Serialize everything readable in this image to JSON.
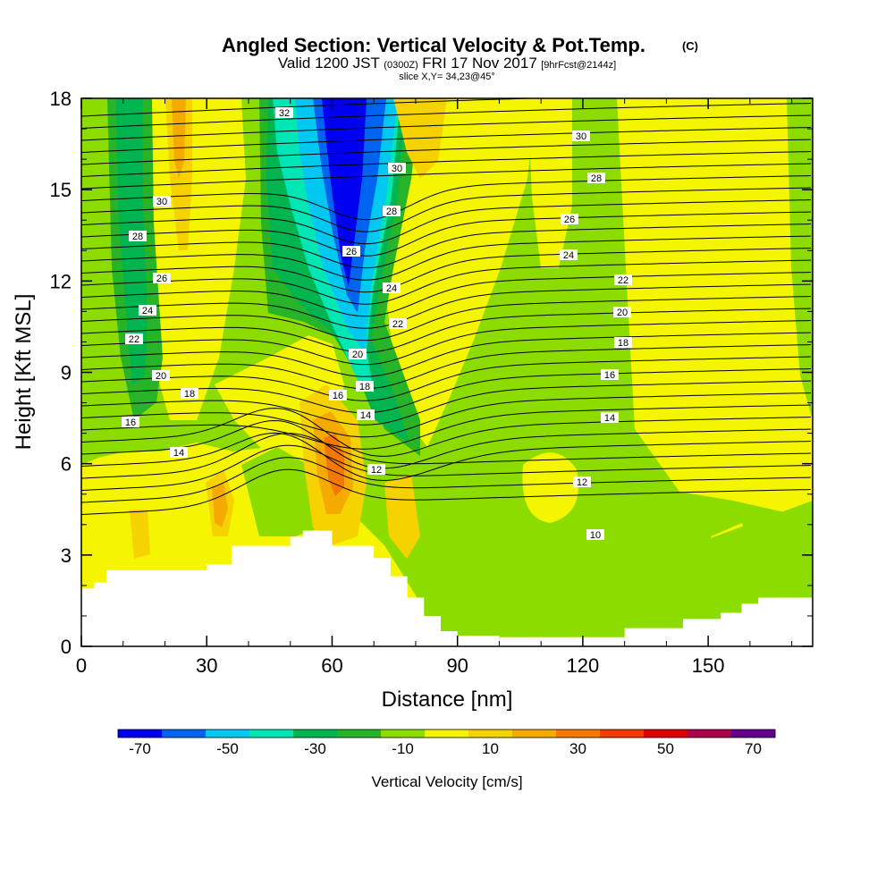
{
  "header": {
    "title_main": "Angled Section: Vertical Velocity & Pot.Temp.",
    "title_unit": "(C)",
    "valid_a": "Valid 1200 JST",
    "valid_b": "(0300Z)",
    "valid_c": "FRI 17 Nov 2017",
    "valid_d": "[9hrFcst@2144z]",
    "slice": "slice X,Y= 34,23@45°"
  },
  "chart_data": {
    "type": "heatmap",
    "xlabel": "Distance [nm]",
    "ylabel": "Height [Kft MSL]",
    "xlim": [
      0,
      175
    ],
    "ylim": [
      0,
      18
    ],
    "x_ticks": [
      "0",
      "30",
      "60",
      "90",
      "120",
      "150"
    ],
    "x_tick_values": [
      0,
      30,
      60,
      90,
      120,
      150
    ],
    "y_ticks": [
      "0",
      "3",
      "6",
      "9",
      "12",
      "15",
      "18"
    ],
    "y_tick_values": [
      0,
      3,
      6,
      9,
      12,
      15,
      18
    ],
    "colorbar": {
      "label": "Vertical Velocity [cm/s]",
      "tick_labels": [
        "-70",
        "-50",
        "-30",
        "-10",
        "10",
        "30",
        "50",
        "70"
      ],
      "tick_values": [
        -70,
        -50,
        -30,
        -10,
        10,
        30,
        50,
        70
      ],
      "colors": [
        "#0000f0",
        "#0064f0",
        "#00c8f0",
        "#00e6b4",
        "#00b450",
        "#28b428",
        "#8cdc00",
        "#f5f500",
        "#f5d200",
        "#f5aa00",
        "#f57800",
        "#f53c00",
        "#dc0000",
        "#aa0050",
        "#64008c"
      ]
    },
    "isentrope_labels": [
      "10",
      "12",
      "14",
      "16",
      "18",
      "20",
      "22",
      "24",
      "26",
      "28",
      "30",
      "32"
    ],
    "terrain_top_kft": [
      [
        0,
        1.9
      ],
      [
        3,
        2.1
      ],
      [
        6,
        2.5
      ],
      [
        30,
        2.7
      ],
      [
        36,
        3.3
      ],
      [
        50,
        3.6
      ],
      [
        53,
        3.8
      ],
      [
        58,
        3.8
      ],
      [
        60,
        3.3
      ],
      [
        66,
        3.3
      ],
      [
        70,
        2.9
      ],
      [
        74,
        2.3
      ],
      [
        78,
        1.6
      ],
      [
        82,
        1.0
      ],
      [
        86,
        0.5
      ],
      [
        90,
        0.35
      ],
      [
        100,
        0.3
      ],
      [
        118,
        0.3
      ],
      [
        124,
        0.3
      ],
      [
        130,
        0.6
      ],
      [
        142,
        0.6
      ],
      [
        144,
        0.9
      ],
      [
        152,
        0.9
      ],
      [
        153,
        1.1
      ],
      [
        158,
        1.4
      ],
      [
        162,
        1.6
      ],
      [
        175,
        1.6
      ]
    ]
  }
}
